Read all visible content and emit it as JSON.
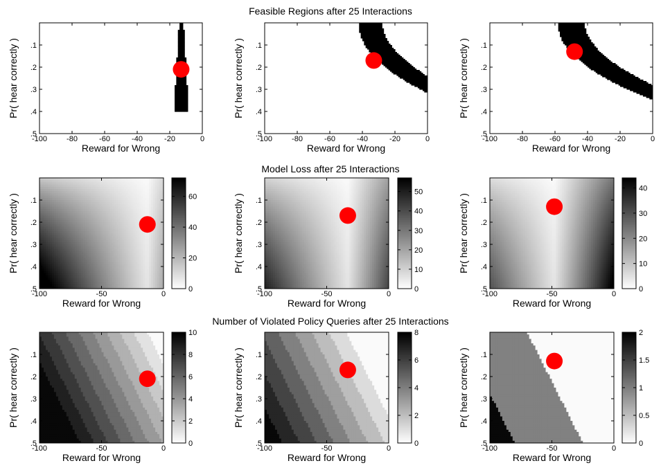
{
  "row_titles": [
    "Feasible Regions after 25 Interactions",
    "Model Loss after 25 Interactions",
    "Number of Violated Policy Queries after 25 Interactions"
  ],
  "chart_data": [
    {
      "type": "heatmap",
      "row": 0,
      "col": 0,
      "kind": "feasible",
      "xlabel": "Reward for Wrong",
      "ylabel": "Pr( hear correctly )",
      "xlim": [
        -100,
        0
      ],
      "ylim": [
        0.5,
        0
      ],
      "xticks": [
        -100,
        -80,
        -60,
        -40,
        -20,
        0
      ],
      "yticks": [
        0.1,
        0.2,
        0.3,
        0.4,
        0.5
      ],
      "marker": {
        "x": -13,
        "y": 0.21
      },
      "band": {
        "center": -13,
        "width": 2.5,
        "k": 0,
        "y_top": 0,
        "y_bottom": 0.4
      }
    },
    {
      "type": "heatmap",
      "row": 0,
      "col": 1,
      "kind": "feasible",
      "xlabel": "Reward for Wrong",
      "ylabel": "Pr( hear correctly )",
      "xlim": [
        -100,
        0
      ],
      "ylim": [
        0.5,
        0
      ],
      "xticks": [
        -100,
        -80,
        -60,
        -40,
        -20,
        0
      ],
      "yticks": [
        0.1,
        0.2,
        0.3,
        0.4,
        0.5
      ],
      "marker": {
        "x": -33,
        "y": 0.17
      },
      "band": {
        "center": -35,
        "width": 14,
        "k": 3.2,
        "y_top": 0,
        "y_bottom": 0.43
      }
    },
    {
      "type": "heatmap",
      "row": 0,
      "col": 2,
      "kind": "feasible",
      "xlabel": "Reward for Wrong",
      "ylabel": "Pr( hear correctly )",
      "xlim": [
        -100,
        0
      ],
      "ylim": [
        0.5,
        0
      ],
      "xticks": [
        -100,
        -80,
        -60,
        -40,
        -20,
        0
      ],
      "yticks": [
        0.1,
        0.2,
        0.3,
        0.4,
        0.5
      ],
      "marker": {
        "x": -48,
        "y": 0.13
      },
      "band": {
        "center": -50,
        "width": 16,
        "k": 3.6,
        "y_top": 0,
        "y_bottom": 0.43
      }
    },
    {
      "type": "heatmap",
      "row": 1,
      "col": 0,
      "kind": "loss",
      "xlabel": "Reward for Wrong",
      "ylabel": "Pr( hear correctly )",
      "xlim": [
        -100,
        0
      ],
      "ylim": [
        0.5,
        0
      ],
      "xticks": [
        -100,
        -50,
        0
      ],
      "yticks": [
        0.1,
        0.2,
        0.3,
        0.4,
        0.5
      ],
      "marker": {
        "x": -13,
        "y": 0.21
      },
      "colorbar": {
        "min": 0,
        "max": 72,
        "ticks": [
          0,
          20,
          40,
          60
        ]
      }
    },
    {
      "type": "heatmap",
      "row": 1,
      "col": 1,
      "kind": "loss",
      "xlabel": "Reward for Wrong",
      "ylabel": "Pr( hear correctly )",
      "xlim": [
        -100,
        0
      ],
      "ylim": [
        0.5,
        0
      ],
      "xticks": [
        -100,
        -50,
        0
      ],
      "yticks": [
        0.1,
        0.2,
        0.3,
        0.4,
        0.5
      ],
      "marker": {
        "x": -33,
        "y": 0.17
      },
      "colorbar": {
        "min": 0,
        "max": 57,
        "ticks": [
          0,
          10,
          20,
          30,
          40,
          50
        ]
      }
    },
    {
      "type": "heatmap",
      "row": 1,
      "col": 2,
      "kind": "loss",
      "xlabel": "Reward for Wrong",
      "ylabel": "Pr( hear correctly )",
      "xlim": [
        -100,
        0
      ],
      "ylim": [
        0.5,
        0
      ],
      "xticks": [
        -100,
        -50,
        0
      ],
      "yticks": [
        0.1,
        0.2,
        0.3,
        0.4,
        0.5
      ],
      "marker": {
        "x": -48,
        "y": 0.13
      },
      "colorbar": {
        "min": 0,
        "max": 44,
        "ticks": [
          0,
          10,
          20,
          30,
          40
        ]
      }
    },
    {
      "type": "heatmap",
      "row": 2,
      "col": 0,
      "kind": "violated",
      "xlabel": "Reward for Wrong",
      "ylabel": "Pr( hear correctly )",
      "xlim": [
        -100,
        0
      ],
      "ylim": [
        0.5,
        0
      ],
      "xticks": [
        -100,
        -50,
        0
      ],
      "yticks": [
        0.1,
        0.2,
        0.3,
        0.4,
        0.5
      ],
      "marker": {
        "x": -13,
        "y": 0.21
      },
      "colorbar": {
        "min": 0,
        "max": 10,
        "ticks": [
          0,
          2,
          4,
          6,
          8,
          10
        ]
      }
    },
    {
      "type": "heatmap",
      "row": 2,
      "col": 1,
      "kind": "violated",
      "xlabel": "Reward for Wrong",
      "ylabel": "Pr( hear correctly )",
      "xlim": [
        -100,
        0
      ],
      "ylim": [
        0.5,
        0
      ],
      "xticks": [
        -100,
        -50,
        0
      ],
      "yticks": [
        0.1,
        0.2,
        0.3,
        0.4,
        0.5
      ],
      "marker": {
        "x": -33,
        "y": 0.17
      },
      "colorbar": {
        "min": 0,
        "max": 8,
        "ticks": [
          0,
          2,
          4,
          6,
          8
        ]
      }
    },
    {
      "type": "heatmap",
      "row": 2,
      "col": 2,
      "kind": "violated",
      "xlabel": "Reward for Wrong",
      "ylabel": "Pr( hear correctly )",
      "xlim": [
        -100,
        0
      ],
      "ylim": [
        0.5,
        0
      ],
      "xticks": [
        -100,
        -50,
        0
      ],
      "yticks": [
        0.1,
        0.2,
        0.3,
        0.4,
        0.5
      ],
      "marker": {
        "x": -48,
        "y": 0.13
      },
      "colorbar": {
        "min": 0,
        "max": 2,
        "ticks": [
          0,
          0.5,
          1,
          1.5,
          2
        ]
      }
    }
  ],
  "colors": {
    "marker": "#ff0000",
    "feasible": "#000000",
    "axis": "#000000"
  }
}
